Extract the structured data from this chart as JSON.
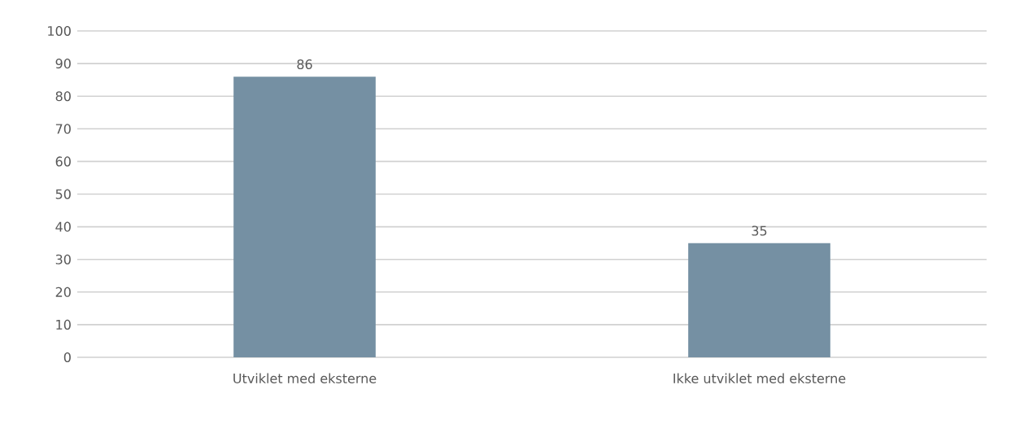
{
  "chart_data": {
    "type": "bar",
    "categories": [
      "Utviklet med eksterne",
      "Ikke utviklet med eksterne"
    ],
    "values": [
      86,
      35
    ],
    "color": "#7590a3",
    "ylim": [
      0,
      100
    ],
    "yticks": [
      0,
      10,
      20,
      30,
      40,
      50,
      60,
      70,
      80,
      90,
      100
    ],
    "grid": "y",
    "data_labels": true
  }
}
